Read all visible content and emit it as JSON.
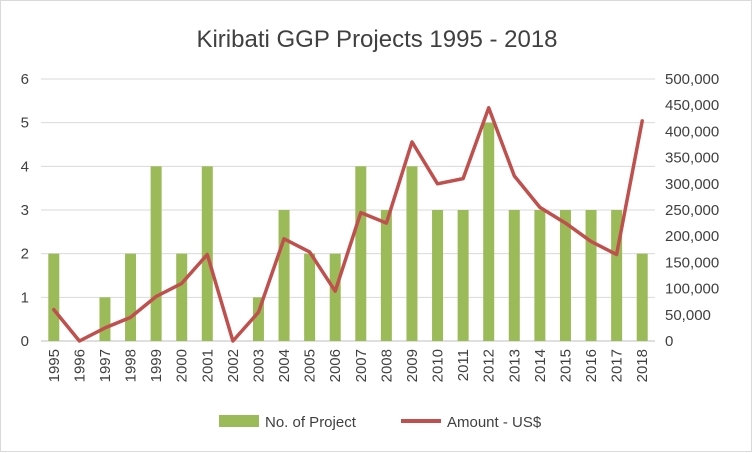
{
  "chart_data": {
    "type": "bar",
    "title": "Kiribati GGP Projects 1995 - 2018",
    "categories": [
      "1995",
      "1996",
      "1997",
      "1998",
      "1999",
      "2000",
      "2001",
      "2002",
      "2003",
      "2004",
      "2005",
      "2006",
      "2007",
      "2008",
      "2009",
      "2010",
      "2011",
      "2012",
      "2013",
      "2014",
      "2015",
      "2016",
      "2017",
      "2018"
    ],
    "series": [
      {
        "name": "No. of Project",
        "type": "bar",
        "axis": "left",
        "color": "#9bbb59",
        "values": [
          2,
          0,
          1,
          2,
          4,
          2,
          4,
          0,
          1,
          3,
          2,
          2,
          4,
          3,
          4,
          3,
          3,
          5,
          3,
          3,
          3,
          3,
          3,
          2
        ]
      },
      {
        "name": "Amount - US$",
        "type": "line",
        "axis": "right",
        "color": "#c0504d",
        "values": [
          60000,
          0,
          25000,
          45000,
          85000,
          110000,
          165000,
          0,
          55000,
          195000,
          170000,
          95000,
          245000,
          225000,
          380000,
          300000,
          310000,
          445000,
          315000,
          255000,
          225000,
          190000,
          165000,
          420000
        ]
      }
    ],
    "y_left": {
      "min": 0,
      "max": 6,
      "ticks": [
        "0",
        "1",
        "2",
        "3",
        "4",
        "5",
        "6"
      ]
    },
    "y_right": {
      "min": 0,
      "max": 500000,
      "ticks": [
        "0",
        "50,000",
        "100,000",
        "150,000",
        "200,000",
        "250,000",
        "300,000",
        "350,000",
        "400,000",
        "450,000",
        "500,000"
      ]
    },
    "grid": true,
    "legend_position": "bottom"
  }
}
